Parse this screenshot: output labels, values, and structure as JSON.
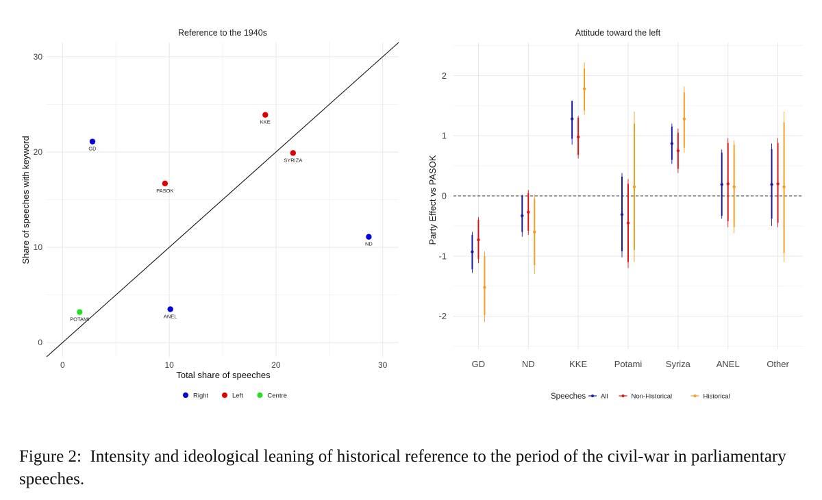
{
  "caption": {
    "label": "Figure 2:",
    "text": "Intensity and ideological leaning of historical reference to the period of the civil-war in parliamentary speeches."
  },
  "chart_data": [
    {
      "type": "scatter",
      "title": "Reference to the 1940s",
      "xlabel": "Total share of speeches",
      "ylabel": "Share of speeches with keyword",
      "xlim": [
        -1.5,
        31.5
      ],
      "ylim": [
        -1.5,
        31.5
      ],
      "xticks": [
        0,
        10,
        20,
        30
      ],
      "yticks": [
        0,
        10,
        20,
        30
      ],
      "grid": true,
      "reference_line": "y = x",
      "points": [
        {
          "label": "GD",
          "x": 2.8,
          "y": 21.1,
          "group": "Right"
        },
        {
          "label": "KKE",
          "x": 19.0,
          "y": 23.9,
          "group": "Left"
        },
        {
          "label": "SYRIZA",
          "x": 21.6,
          "y": 19.9,
          "group": "Left"
        },
        {
          "label": "PASOK",
          "x": 9.6,
          "y": 16.7,
          "group": "Left"
        },
        {
          "label": "ND",
          "x": 28.7,
          "y": 11.1,
          "group": "Right"
        },
        {
          "label": "ANEL",
          "x": 10.1,
          "y": 3.5,
          "group": "Right"
        },
        {
          "label": "POTAMI",
          "x": 1.6,
          "y": 3.2,
          "group": "Centre"
        }
      ],
      "legend": {
        "placement": "bottom",
        "entries": [
          {
            "name": "Right",
            "color": "#0000e0"
          },
          {
            "name": "Left",
            "color": "#e00000"
          },
          {
            "name": "Centre",
            "color": "#22e022"
          }
        ]
      }
    },
    {
      "type": "pointrange",
      "title": "Attitude toward the left",
      "xlabel": "",
      "ylabel": "Party Effect vs PASOK",
      "ylim": [
        -2.55,
        2.55
      ],
      "yticks": [
        -2,
        -1,
        0,
        1,
        2
      ],
      "reference_hline": 0,
      "grid": true,
      "categories": [
        "GD",
        "ND",
        "KKE",
        "Potami",
        "Syriza",
        "ANEL",
        "Other"
      ],
      "series": [
        {
          "name": "All",
          "color": "#1a1aa0",
          "estimate": [
            -0.93,
            -0.33,
            1.28,
            -0.31,
            0.87,
            0.19,
            0.19
          ],
          "lower_thick": [
            -1.22,
            -0.6,
            0.95,
            -0.92,
            0.6,
            -0.33,
            -0.38
          ],
          "upper_thick": [
            -0.65,
            0.0,
            1.58,
            0.32,
            1.15,
            0.72,
            0.78
          ],
          "lower_thin": [
            -1.28,
            -0.68,
            0.85,
            -1.02,
            0.53,
            -0.38,
            -0.5
          ],
          "upper_thin": [
            -0.6,
            0.02,
            1.58,
            0.38,
            1.2,
            0.77,
            0.87
          ]
        },
        {
          "name": "Non-Historical",
          "color": "#d81818",
          "estimate": [
            -0.73,
            -0.27,
            0.98,
            -0.45,
            0.75,
            0.2,
            0.2
          ],
          "lower_thick": [
            -1.05,
            -0.58,
            0.68,
            -1.1,
            0.45,
            -0.42,
            -0.45
          ],
          "upper_thick": [
            -0.4,
            0.05,
            1.3,
            0.2,
            1.05,
            0.88,
            0.88
          ],
          "lower_thin": [
            -1.12,
            -0.65,
            0.62,
            -1.2,
            0.38,
            -0.52,
            -0.52
          ],
          "upper_thin": [
            -0.35,
            0.1,
            1.33,
            0.28,
            1.12,
            0.96,
            0.96
          ]
        },
        {
          "name": "Historical",
          "color": "#f0a020",
          "estimate": [
            -1.52,
            -0.6,
            1.78,
            0.15,
            1.28,
            0.15,
            0.15
          ],
          "lower_thick": [
            -1.98,
            -1.15,
            1.42,
            -0.9,
            0.8,
            -0.52,
            -0.95
          ],
          "upper_thick": [
            -1.0,
            -0.05,
            2.12,
            1.2,
            1.72,
            0.85,
            1.22
          ],
          "lower_thin": [
            -2.1,
            -1.3,
            1.35,
            -1.1,
            0.72,
            -0.62,
            -1.1
          ],
          "upper_thin": [
            -0.92,
            0.02,
            2.22,
            1.4,
            1.82,
            0.92,
            1.4
          ]
        }
      ],
      "legend": {
        "placement": "bottom",
        "title": "Speeches",
        "entries": [
          "All",
          "Non-Historical",
          "Historical"
        ]
      }
    }
  ]
}
